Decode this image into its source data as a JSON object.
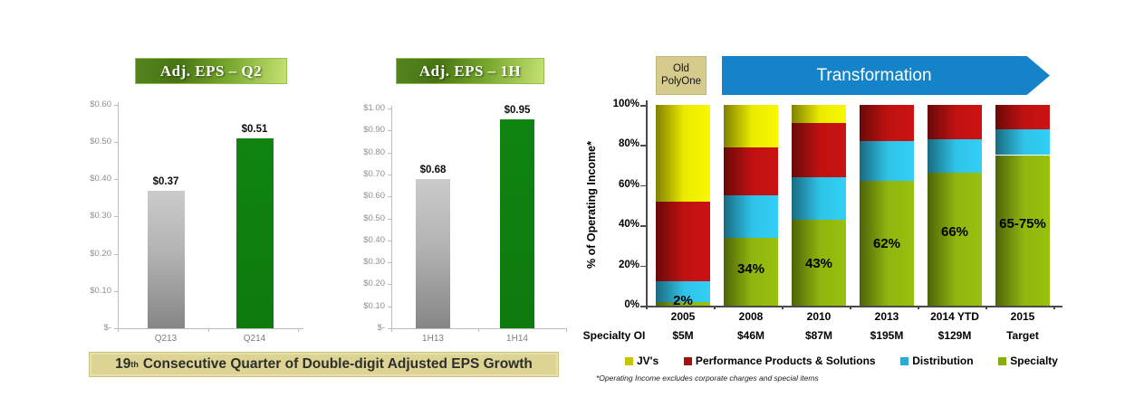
{
  "banner": {
    "prefix": "19",
    "superscript": "th",
    "rest": "Consecutive Quarter of Double-digit Adjusted EPS Growth"
  },
  "chart_data": [
    {
      "type": "bar",
      "title": "Adj. EPS – Q2",
      "categories": [
        "Q213",
        "Q214"
      ],
      "values": [
        0.37,
        0.51
      ],
      "value_labels": [
        "$0.37",
        "$0.51"
      ],
      "bar_colors": [
        "gray",
        "green"
      ],
      "yticks": [
        "$-",
        "$0.10",
        "$0.20",
        "$0.30",
        "$0.40",
        "$0.50",
        "$0.60"
      ],
      "ylim": [
        0,
        0.6
      ]
    },
    {
      "type": "bar",
      "title": "Adj. EPS – 1H",
      "categories": [
        "1H13",
        "1H14"
      ],
      "values": [
        0.68,
        0.95
      ],
      "value_labels": [
        "$0.68",
        "$0.95"
      ],
      "bar_colors": [
        "gray",
        "green"
      ],
      "yticks": [
        "$-",
        "$0.10",
        "$0.20",
        "$0.30",
        "$0.40",
        "$0.50",
        "$0.60",
        "$0.70",
        "$0.80",
        "$0.90",
        "$1.00"
      ],
      "ylim": [
        0,
        1.0
      ]
    },
    {
      "type": "stacked-bar",
      "ylabel": "% of Operating Income*",
      "yticks": [
        "0%",
        "20%",
        "40%",
        "60%",
        "80%",
        "100%"
      ],
      "ylim": [
        0,
        100
      ],
      "categories": [
        "2005",
        "2008",
        "2010",
        "2013",
        "2014 YTD",
        "2015"
      ],
      "row_label": "Specialty OI",
      "row_values": [
        "$5M",
        "$46M",
        "$87M",
        "$195M",
        "$129M",
        "Target"
      ],
      "bar_labels": [
        "2%",
        "34%",
        "43%",
        "62%",
        "66%",
        "65-75%"
      ],
      "series": [
        {
          "name": "Specialty",
          "color": "#8fb60e",
          "values": [
            2,
            34,
            43,
            62,
            66,
            75
          ]
        },
        {
          "name": "Distribution",
          "color": "#2fc3e8",
          "values": [
            10,
            21,
            21,
            20,
            17,
            13
          ]
        },
        {
          "name": "Performance Products & Solutions",
          "color": "#c01111",
          "values": [
            40,
            24,
            27,
            18,
            17,
            12
          ]
        },
        {
          "name": "JV's",
          "color": "#eaea00",
          "values": [
            48,
            21,
            9,
            0,
            0,
            0
          ]
        }
      ],
      "legend": [
        {
          "label": "JV's",
          "color": "#c6c600"
        },
        {
          "label": "Performance Products & Solutions",
          "color": "#a31111"
        },
        {
          "label": "Distribution",
          "color": "#2aa9d6"
        },
        {
          "label": "Specialty",
          "color": "#87ad0b"
        }
      ],
      "annotations": {
        "old_polyone": "Old PolyOne",
        "transformation": "Transformation"
      },
      "footnote": "*Operating Income excludes corporate charges and special items"
    }
  ]
}
